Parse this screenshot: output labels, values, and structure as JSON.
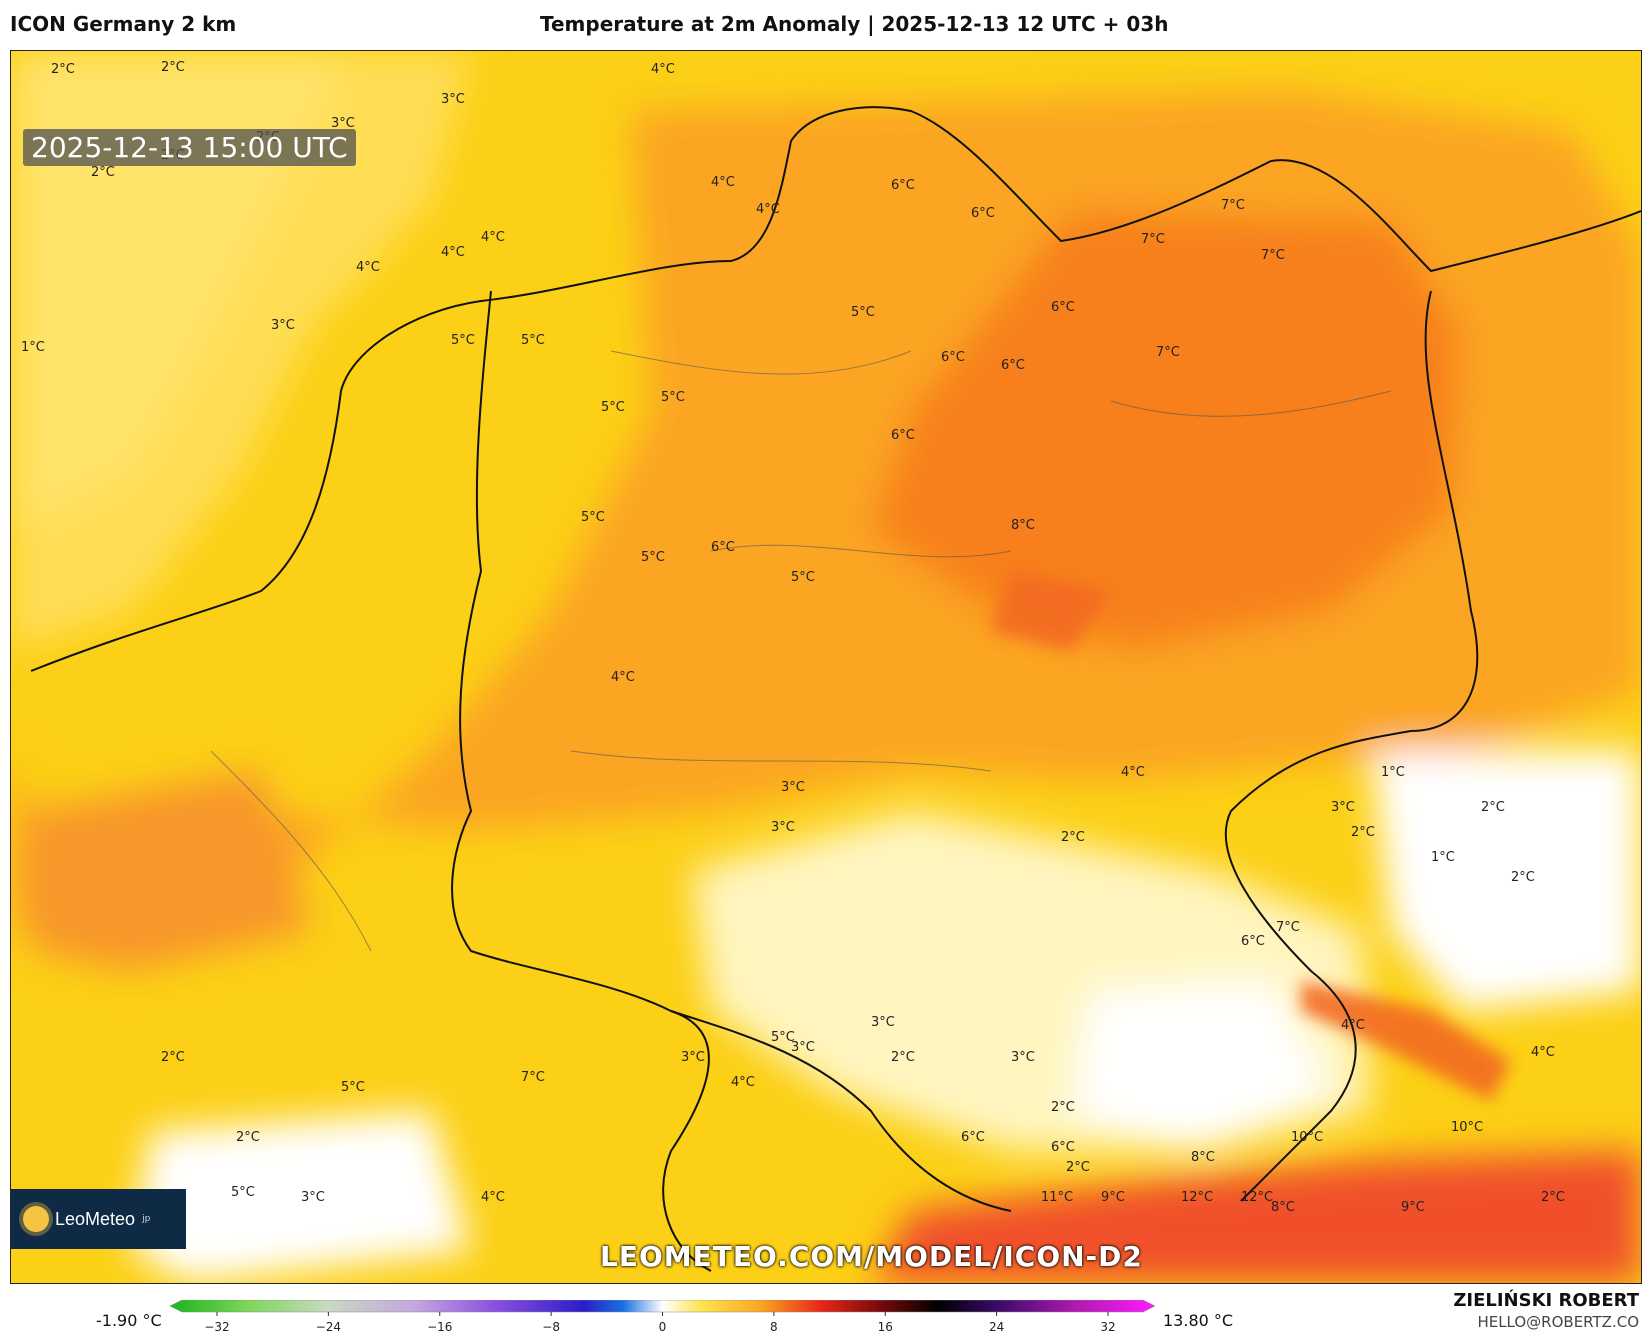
{
  "header": {
    "model": "ICON Germany 2 km",
    "title": "Temperature at 2m Anomaly | 2025-12-13 12 UTC + 03h"
  },
  "map": {
    "valid_time": "2025-12-13 15:00 UTC",
    "watermark": "LEOMETEO.COM/MODEL/ICON-D2",
    "logo": {
      "name": "LeoMeteo",
      "suffix": "jp"
    },
    "labels": [
      "2°C",
      "2°C",
      "3°C",
      "3°C",
      "2°C",
      "2°C",
      "2°C",
      "4°C",
      "4°C",
      "4°C",
      "3°C",
      "1°C",
      "4°C",
      "4°C",
      "4°C",
      "5°C",
      "5°C",
      "5°C",
      "5°C",
      "6°C",
      "7°C",
      "7°C",
      "7°C",
      "6°C",
      "6°C",
      "5°C",
      "6°C",
      "6°C",
      "7°C",
      "8°C",
      "6°C",
      "5°C",
      "5°C",
      "6°C",
      "5°C",
      "4°C",
      "4°C",
      "3°C",
      "3°C",
      "2°C",
      "1°C",
      "2°C",
      "3°C",
      "2°C",
      "1°C",
      "2°C",
      "7°C",
      "6°C",
      "4°C",
      "3°C",
      "2°C",
      "3°C",
      "5°C",
      "4°C",
      "3°C",
      "3°C",
      "2°C",
      "2°C",
      "6°C",
      "6°C",
      "8°C",
      "10°C",
      "10°C",
      "8°C",
      "9°C",
      "11°C",
      "9°C",
      "12°C",
      "12°C",
      "2°C",
      "5°C",
      "5°C",
      "3°C",
      "4°C",
      "2°C",
      "2°C",
      "7°C",
      "5°C",
      "4°C"
    ]
  },
  "colorbar": {
    "min_label": "-1.90 °C",
    "max_label": "13.80 °C",
    "ticks": [
      "−32",
      "−24",
      "−16",
      "−8",
      "0",
      "8",
      "16",
      "24",
      "32"
    ]
  },
  "author": {
    "name": "ZIELIŃSKI ROBERT",
    "email": "HELLO@ROBERTZ.CO"
  }
}
